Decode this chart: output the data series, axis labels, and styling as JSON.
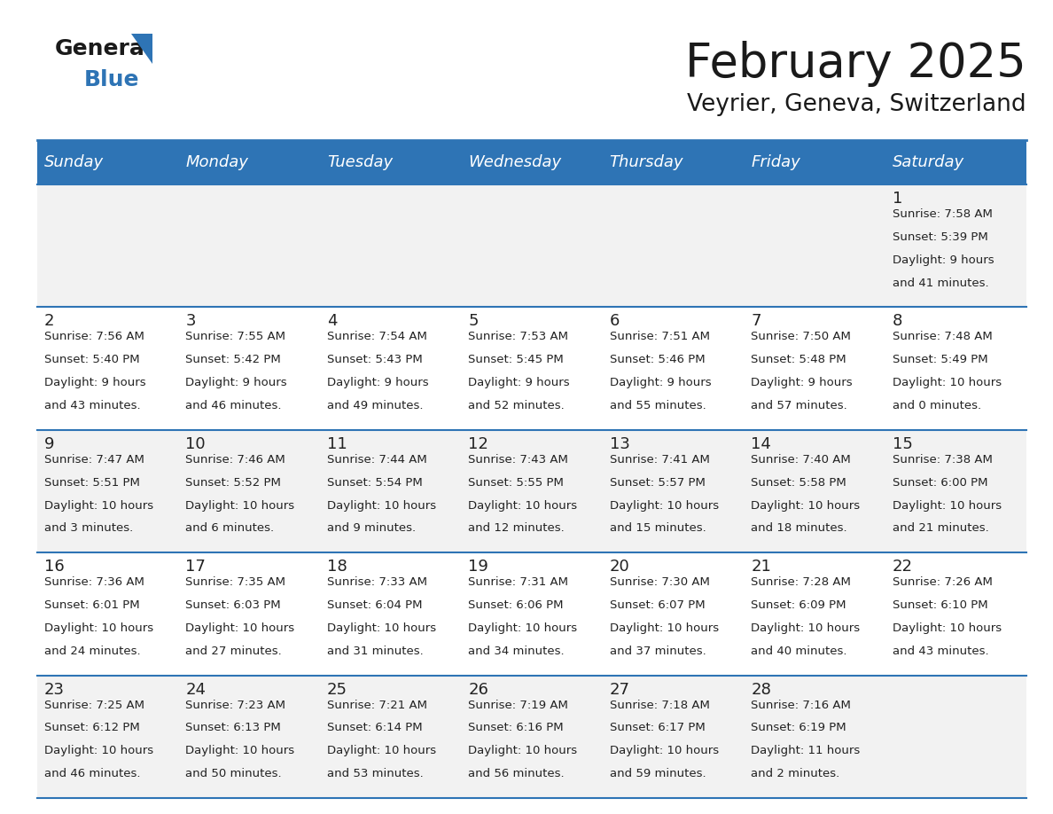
{
  "title": "February 2025",
  "subtitle": "Veyrier, Geneva, Switzerland",
  "header_bg": "#2E74B5",
  "header_text_color": "#FFFFFF",
  "cell_bg_white": "#FFFFFF",
  "cell_bg_gray": "#F2F2F2",
  "separator_color": "#2E74B5",
  "day_headers": [
    "Sunday",
    "Monday",
    "Tuesday",
    "Wednesday",
    "Thursday",
    "Friday",
    "Saturday"
  ],
  "calendar_data": [
    [
      {
        "day": null,
        "sunrise": null,
        "sunset": null,
        "daylight_line1": null,
        "daylight_line2": null
      },
      {
        "day": null,
        "sunrise": null,
        "sunset": null,
        "daylight_line1": null,
        "daylight_line2": null
      },
      {
        "day": null,
        "sunrise": null,
        "sunset": null,
        "daylight_line1": null,
        "daylight_line2": null
      },
      {
        "day": null,
        "sunrise": null,
        "sunset": null,
        "daylight_line1": null,
        "daylight_line2": null
      },
      {
        "day": null,
        "sunrise": null,
        "sunset": null,
        "daylight_line1": null,
        "daylight_line2": null
      },
      {
        "day": null,
        "sunrise": null,
        "sunset": null,
        "daylight_line1": null,
        "daylight_line2": null
      },
      {
        "day": 1,
        "sunrise": "7:58 AM",
        "sunset": "5:39 PM",
        "daylight_line1": "Daylight: 9 hours",
        "daylight_line2": "and 41 minutes."
      }
    ],
    [
      {
        "day": 2,
        "sunrise": "7:56 AM",
        "sunset": "5:40 PM",
        "daylight_line1": "Daylight: 9 hours",
        "daylight_line2": "and 43 minutes."
      },
      {
        "day": 3,
        "sunrise": "7:55 AM",
        "sunset": "5:42 PM",
        "daylight_line1": "Daylight: 9 hours",
        "daylight_line2": "and 46 minutes."
      },
      {
        "day": 4,
        "sunrise": "7:54 AM",
        "sunset": "5:43 PM",
        "daylight_line1": "Daylight: 9 hours",
        "daylight_line2": "and 49 minutes."
      },
      {
        "day": 5,
        "sunrise": "7:53 AM",
        "sunset": "5:45 PM",
        "daylight_line1": "Daylight: 9 hours",
        "daylight_line2": "and 52 minutes."
      },
      {
        "day": 6,
        "sunrise": "7:51 AM",
        "sunset": "5:46 PM",
        "daylight_line1": "Daylight: 9 hours",
        "daylight_line2": "and 55 minutes."
      },
      {
        "day": 7,
        "sunrise": "7:50 AM",
        "sunset": "5:48 PM",
        "daylight_line1": "Daylight: 9 hours",
        "daylight_line2": "and 57 minutes."
      },
      {
        "day": 8,
        "sunrise": "7:48 AM",
        "sunset": "5:49 PM",
        "daylight_line1": "Daylight: 10 hours",
        "daylight_line2": "and 0 minutes."
      }
    ],
    [
      {
        "day": 9,
        "sunrise": "7:47 AM",
        "sunset": "5:51 PM",
        "daylight_line1": "Daylight: 10 hours",
        "daylight_line2": "and 3 minutes."
      },
      {
        "day": 10,
        "sunrise": "7:46 AM",
        "sunset": "5:52 PM",
        "daylight_line1": "Daylight: 10 hours",
        "daylight_line2": "and 6 minutes."
      },
      {
        "day": 11,
        "sunrise": "7:44 AM",
        "sunset": "5:54 PM",
        "daylight_line1": "Daylight: 10 hours",
        "daylight_line2": "and 9 minutes."
      },
      {
        "day": 12,
        "sunrise": "7:43 AM",
        "sunset": "5:55 PM",
        "daylight_line1": "Daylight: 10 hours",
        "daylight_line2": "and 12 minutes."
      },
      {
        "day": 13,
        "sunrise": "7:41 AM",
        "sunset": "5:57 PM",
        "daylight_line1": "Daylight: 10 hours",
        "daylight_line2": "and 15 minutes."
      },
      {
        "day": 14,
        "sunrise": "7:40 AM",
        "sunset": "5:58 PM",
        "daylight_line1": "Daylight: 10 hours",
        "daylight_line2": "and 18 minutes."
      },
      {
        "day": 15,
        "sunrise": "7:38 AM",
        "sunset": "6:00 PM",
        "daylight_line1": "Daylight: 10 hours",
        "daylight_line2": "and 21 minutes."
      }
    ],
    [
      {
        "day": 16,
        "sunrise": "7:36 AM",
        "sunset": "6:01 PM",
        "daylight_line1": "Daylight: 10 hours",
        "daylight_line2": "and 24 minutes."
      },
      {
        "day": 17,
        "sunrise": "7:35 AM",
        "sunset": "6:03 PM",
        "daylight_line1": "Daylight: 10 hours",
        "daylight_line2": "and 27 minutes."
      },
      {
        "day": 18,
        "sunrise": "7:33 AM",
        "sunset": "6:04 PM",
        "daylight_line1": "Daylight: 10 hours",
        "daylight_line2": "and 31 minutes."
      },
      {
        "day": 19,
        "sunrise": "7:31 AM",
        "sunset": "6:06 PM",
        "daylight_line1": "Daylight: 10 hours",
        "daylight_line2": "and 34 minutes."
      },
      {
        "day": 20,
        "sunrise": "7:30 AM",
        "sunset": "6:07 PM",
        "daylight_line1": "Daylight: 10 hours",
        "daylight_line2": "and 37 minutes."
      },
      {
        "day": 21,
        "sunrise": "7:28 AM",
        "sunset": "6:09 PM",
        "daylight_line1": "Daylight: 10 hours",
        "daylight_line2": "and 40 minutes."
      },
      {
        "day": 22,
        "sunrise": "7:26 AM",
        "sunset": "6:10 PM",
        "daylight_line1": "Daylight: 10 hours",
        "daylight_line2": "and 43 minutes."
      }
    ],
    [
      {
        "day": 23,
        "sunrise": "7:25 AM",
        "sunset": "6:12 PM",
        "daylight_line1": "Daylight: 10 hours",
        "daylight_line2": "and 46 minutes."
      },
      {
        "day": 24,
        "sunrise": "7:23 AM",
        "sunset": "6:13 PM",
        "daylight_line1": "Daylight: 10 hours",
        "daylight_line2": "and 50 minutes."
      },
      {
        "day": 25,
        "sunrise": "7:21 AM",
        "sunset": "6:14 PM",
        "daylight_line1": "Daylight: 10 hours",
        "daylight_line2": "and 53 minutes."
      },
      {
        "day": 26,
        "sunrise": "7:19 AM",
        "sunset": "6:16 PM",
        "daylight_line1": "Daylight: 10 hours",
        "daylight_line2": "and 56 minutes."
      },
      {
        "day": 27,
        "sunrise": "7:18 AM",
        "sunset": "6:17 PM",
        "daylight_line1": "Daylight: 10 hours",
        "daylight_line2": "and 59 minutes."
      },
      {
        "day": 28,
        "sunrise": "7:16 AM",
        "sunset": "6:19 PM",
        "daylight_line1": "Daylight: 11 hours",
        "daylight_line2": "and 2 minutes."
      },
      {
        "day": null,
        "sunrise": null,
        "sunset": null,
        "daylight_line1": null,
        "daylight_line2": null
      }
    ]
  ],
  "logo_general_color": "#1a1a1a",
  "logo_blue_color": "#2E74B5",
  "title_fontsize": 38,
  "subtitle_fontsize": 19,
  "header_fontsize": 13,
  "day_num_fontsize": 13,
  "cell_text_fontsize": 9.5
}
